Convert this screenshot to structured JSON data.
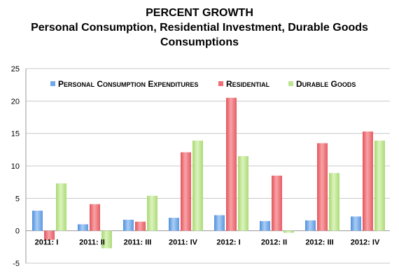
{
  "chart_data": {
    "type": "bar",
    "title_lines": [
      "PERCENT GROWTH",
      "Personal Consumption, Residential Investment, Durable Goods",
      "Consumptions"
    ],
    "categories": [
      "2011: I",
      "2011: II",
      "2011: III",
      "2011: IV",
      "2012: I",
      "2012: II",
      "2012: III",
      "2012: IV"
    ],
    "series": [
      {
        "name": "Personal consumption expenditures",
        "color": "#6fa8e8",
        "values": [
          3.1,
          1.0,
          1.7,
          2.0,
          2.4,
          1.5,
          1.6,
          2.2
        ]
      },
      {
        "name": "Residential",
        "color": "#ee6e74",
        "values": [
          -1.4,
          4.1,
          1.4,
          12.1,
          20.5,
          8.5,
          13.5,
          15.3
        ]
      },
      {
        "name": "Durable goods",
        "color": "#bde58f",
        "values": [
          7.3,
          -2.7,
          5.4,
          13.9,
          11.5,
          -0.3,
          8.9,
          13.9
        ]
      }
    ],
    "ylim": [
      -5,
      25
    ],
    "yticks": [
      -5,
      0,
      5,
      10,
      15,
      20,
      25
    ],
    "grid": "horizontal",
    "legend_position": "top-left"
  }
}
